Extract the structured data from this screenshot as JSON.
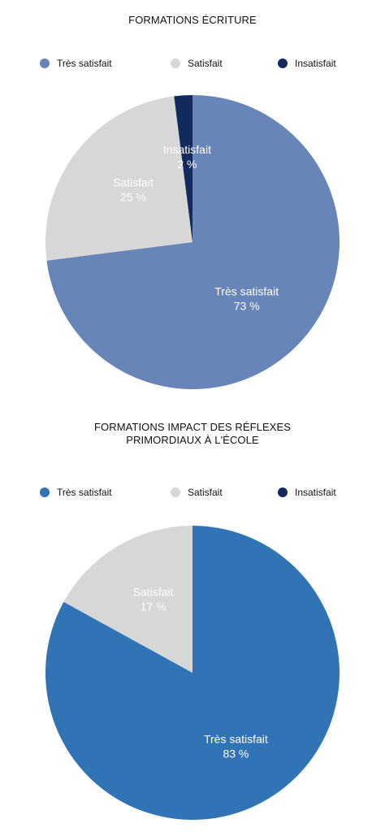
{
  "chart_data": [
    {
      "type": "pie",
      "title": "FORMATIONS ÉCRITURE",
      "legend_position": "top",
      "slices": [
        {
          "label": "Très satisfait",
          "value": 73,
          "value_label": "73 %",
          "color": "#6785b7"
        },
        {
          "label": "Satisfait",
          "value": 25,
          "value_label": "25 %",
          "color": "#d7d7d7"
        },
        {
          "label": "Insatisfait",
          "value": 2,
          "value_label": "2 %",
          "color": "#132a5e"
        }
      ]
    },
    {
      "type": "pie",
      "title": "FORMATIONS IMPACT DES RÉFLEXES PRIMORDIAUX À L'ÉCOLE",
      "legend_position": "top",
      "slices": [
        {
          "label": "Très satisfait",
          "value": 83,
          "value_label": "83 %",
          "color": "#3174b5"
        },
        {
          "label": "Satisfait",
          "value": 17,
          "value_label": "17 %",
          "color": "#d7d7d7"
        },
        {
          "label": "Insatisfait",
          "value": 0,
          "value_label": "",
          "color": "#132a5e"
        }
      ]
    }
  ]
}
